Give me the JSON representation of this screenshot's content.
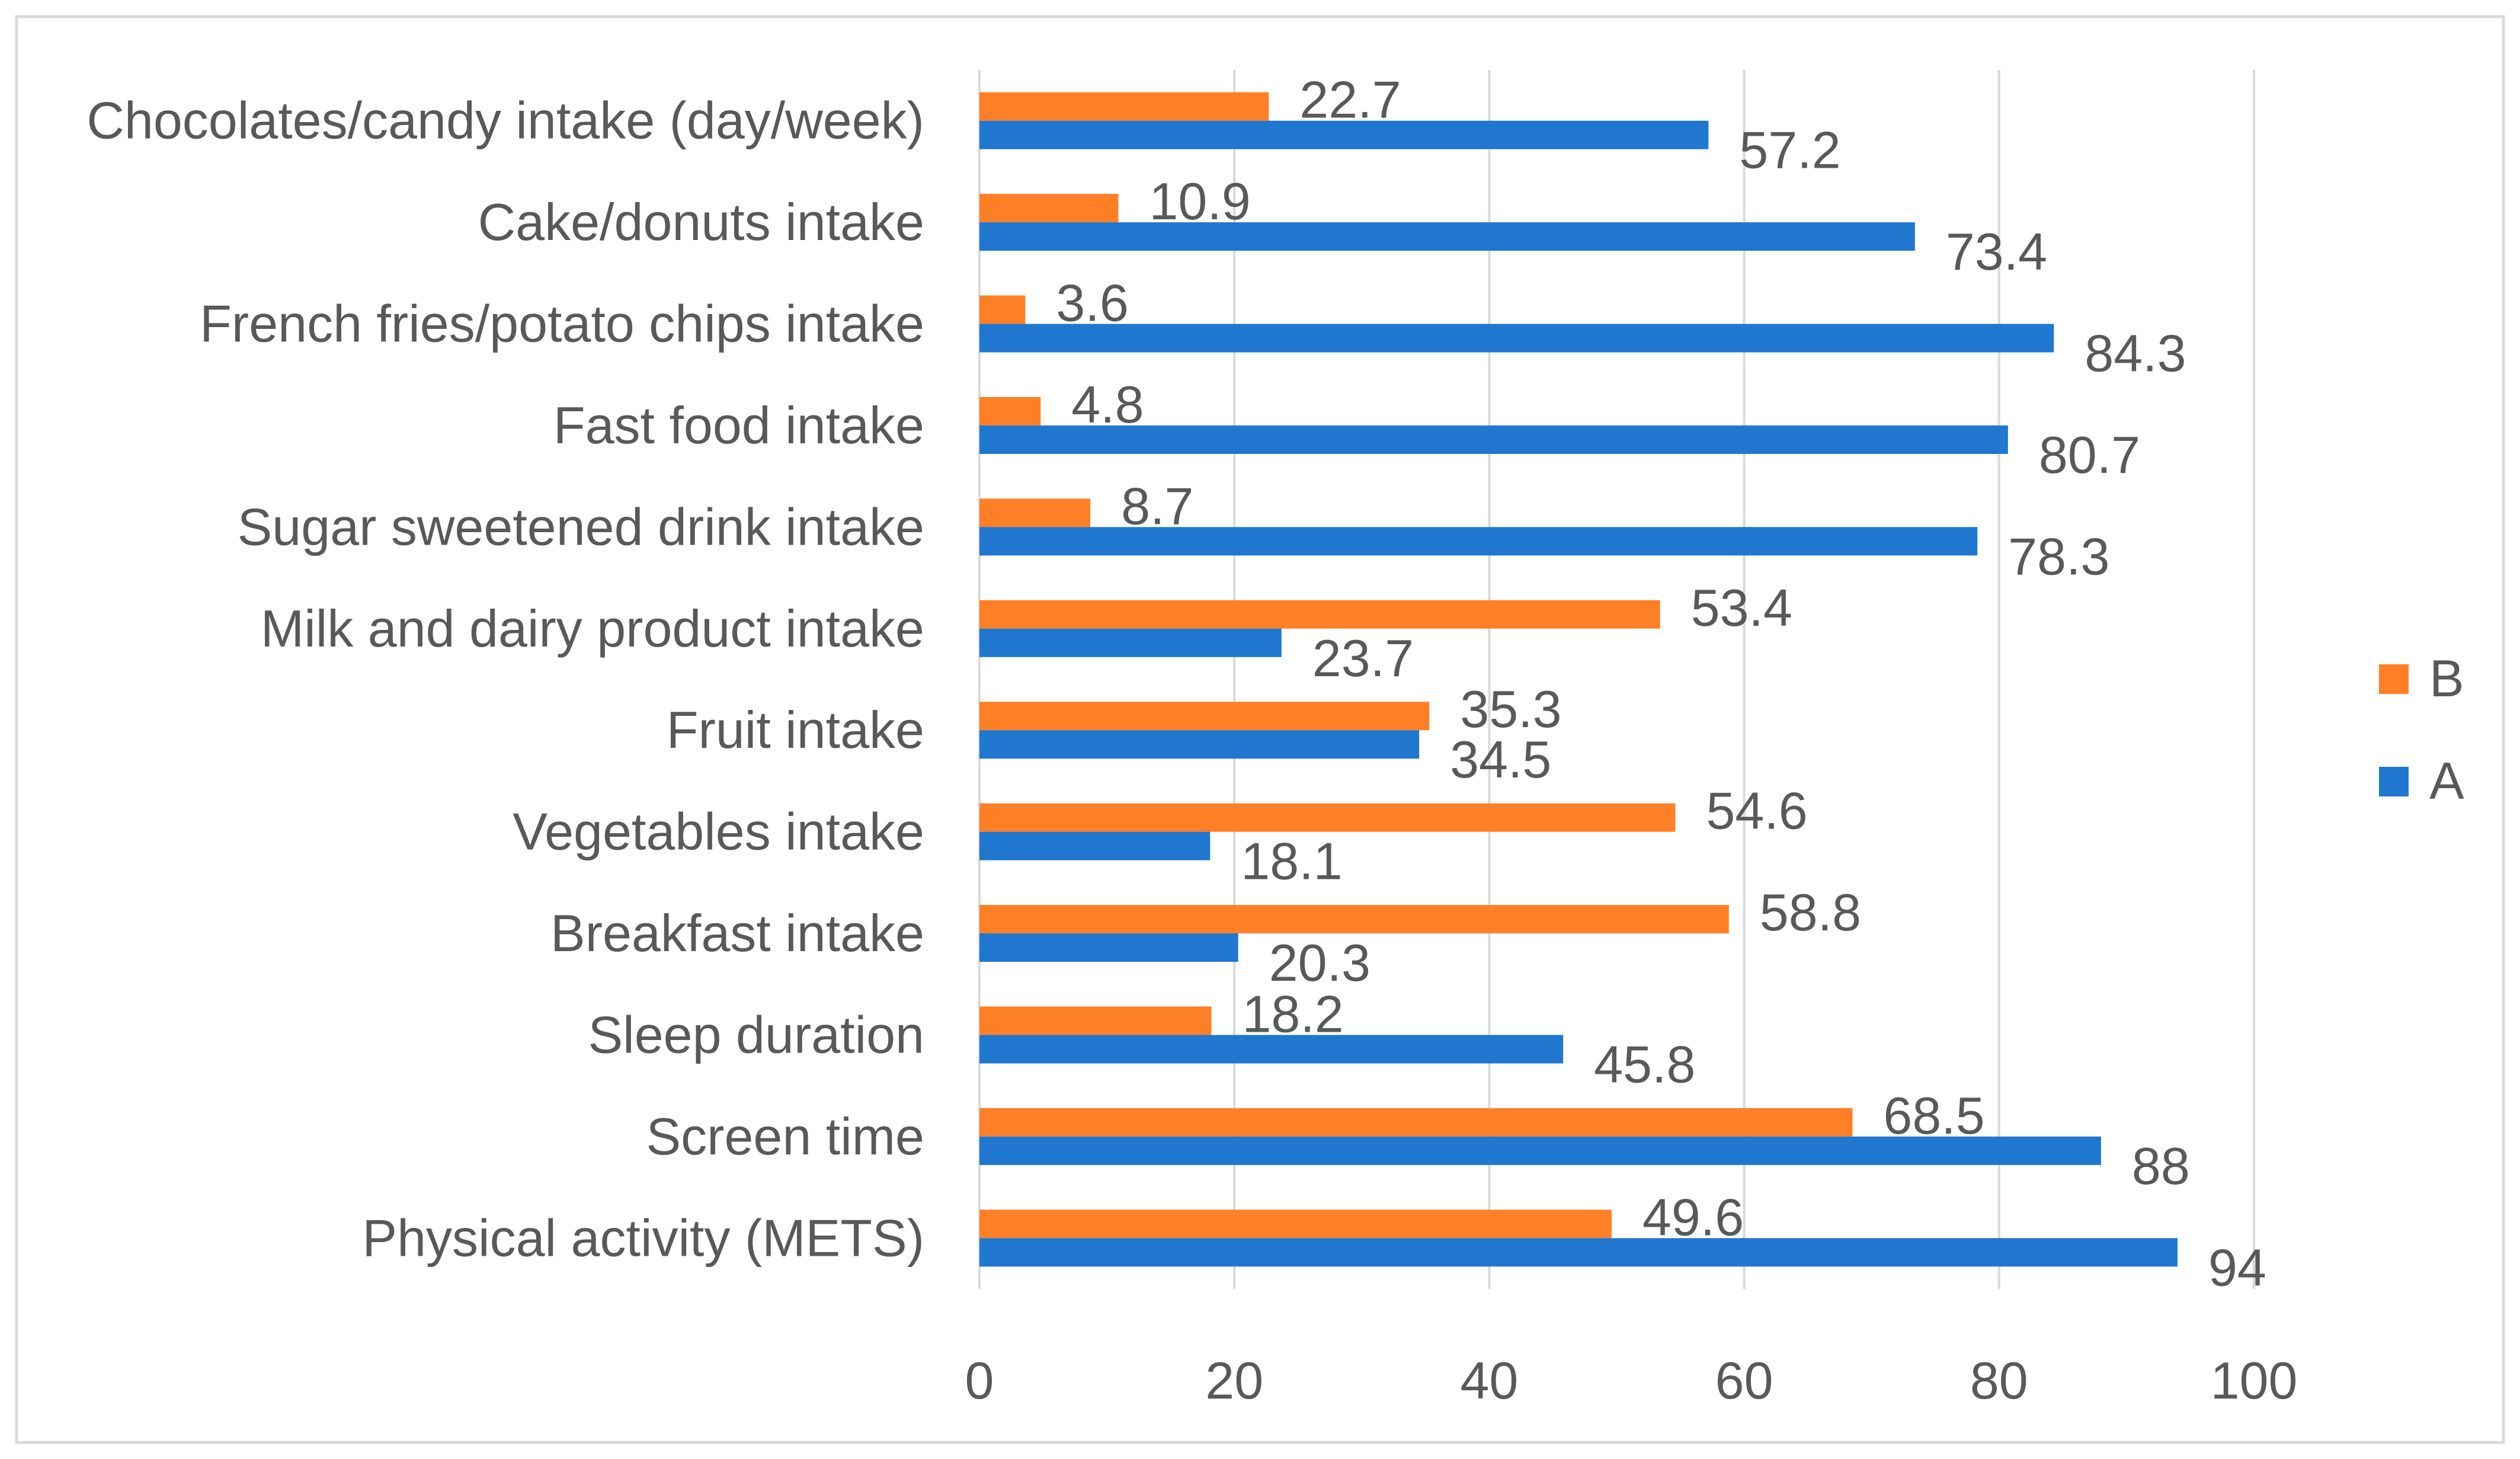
{
  "chart_data": {
    "type": "bar",
    "orientation": "horizontal",
    "title": "",
    "xlabel": "",
    "ylabel": "",
    "xlim": [
      0,
      100
    ],
    "ticks": [
      "0",
      "20",
      "40",
      "60",
      "80",
      "100"
    ],
    "tick_values": [
      0,
      20,
      40,
      60,
      80,
      100
    ],
    "grid": true,
    "legend_position": "right",
    "categories": [
      "Chocolates/candy intake (day/week)",
      "Cake/donuts intake",
      "French fries/potato chips intake",
      "Fast food intake",
      "Sugar sweetened drink intake",
      "Milk and dairy product intake",
      "Fruit intake",
      "Vegetables intake",
      "Breakfast intake",
      "Sleep duration",
      "Screen time",
      "Physical activity (METS)"
    ],
    "series": [
      {
        "name": "B",
        "color": "#FF7F27",
        "values": [
          22.7,
          10.9,
          3.6,
          4.8,
          8.7,
          53.4,
          35.3,
          54.6,
          58.8,
          18.2,
          68.5,
          49.6
        ],
        "labels": [
          "22.7",
          "10.9",
          "3.6",
          "4.8",
          "8.7",
          "53.4",
          "35.3",
          "54.6",
          "58.8",
          "18.2",
          "68.5",
          "49.6"
        ]
      },
      {
        "name": "A",
        "color": "#1F77D0",
        "values": [
          57.2,
          73.4,
          84.3,
          80.7,
          78.3,
          23.7,
          34.5,
          18.1,
          20.3,
          45.8,
          88,
          94
        ],
        "labels": [
          "57.2",
          "73.4",
          "84.3",
          "80.7",
          "78.3",
          "23.7",
          "34.5",
          "18.1",
          "20.3",
          "45.8",
          "88",
          "94"
        ]
      }
    ],
    "legend_order": [
      "B",
      "A"
    ]
  },
  "colors": {
    "grid": "#D9D9D9",
    "text": "#595959",
    "frame": "#D9D9D9"
  }
}
